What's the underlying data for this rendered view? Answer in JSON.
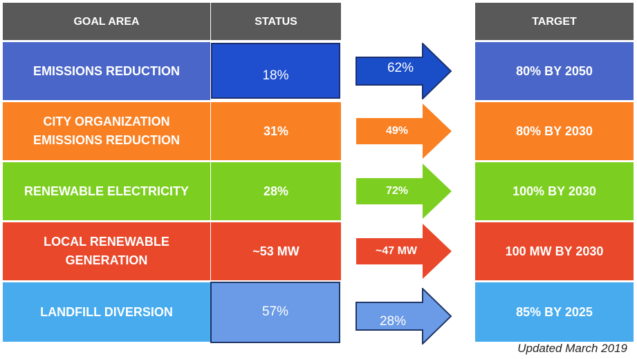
{
  "headers": {
    "goal_area": "GOAL AREA",
    "status": "STATUS",
    "target": "TARGET"
  },
  "rows": [
    {
      "goal_line1": "EMISSIONS REDUCTION",
      "goal_line2": "",
      "status": "18%",
      "progress": "62%",
      "target": "80% BY 2050",
      "color": "#4a66c8",
      "status_color": "#1f4fcf",
      "arrow_color": "#1a4ec9"
    },
    {
      "goal_line1": "CITY ORGANIZATION",
      "goal_line2": "EMISSIONS REDUCTION",
      "status": "31%",
      "progress": "49%",
      "target": "80% BY 2030",
      "color": "#f98023",
      "status_color": "#f98023",
      "arrow_color": "#f98023"
    },
    {
      "goal_line1": "RENEWABLE ELECTRICITY",
      "goal_line2": "",
      "status": "28%",
      "progress": "72%",
      "target": "100% BY 2030",
      "color": "#7ccf20",
      "status_color": "#7ccf20",
      "arrow_color": "#7ccf20"
    },
    {
      "goal_line1": "LOCAL RENEWABLE",
      "goal_line2": "GENERATION",
      "status": "~53 MW",
      "progress": "~47 MW",
      "target": "100 MW BY 2030",
      "color": "#e9482a",
      "status_color": "#e9482a",
      "arrow_color": "#e9482a"
    },
    {
      "goal_line1": "LANDFILL DIVERSION",
      "goal_line2": "",
      "status": "57%",
      "progress": "28%",
      "target": "85% BY 2025",
      "color": "#47abee",
      "status_color": "#6b9be6",
      "arrow_color": "#6b9be6"
    }
  ],
  "footnote": "Updated March 2019"
}
